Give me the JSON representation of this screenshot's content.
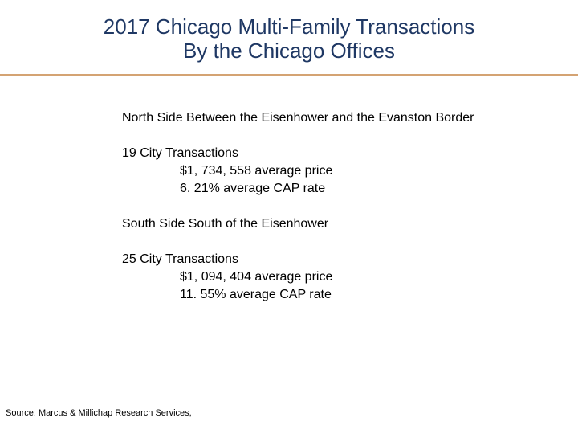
{
  "title": {
    "line1": "2017 Chicago Multi-Family Transactions",
    "line2": "By the Chicago Offices"
  },
  "colors": {
    "title": "#1f3864",
    "rule": "#d4a373"
  },
  "sections": [
    {
      "heading": "North Side Between the Eisenhower and the Evanston Border",
      "count": "19 City Transactions",
      "price": "$1, 734, 558 average price",
      "cap": "6. 21% average CAP rate"
    },
    {
      "heading": "South Side South of the Eisenhower",
      "count": "25 City Transactions",
      "price": "$1, 094, 404 average price",
      "cap": "11. 55% average CAP rate"
    }
  ],
  "source": "Source: Marcus & Millichap Research Services,"
}
